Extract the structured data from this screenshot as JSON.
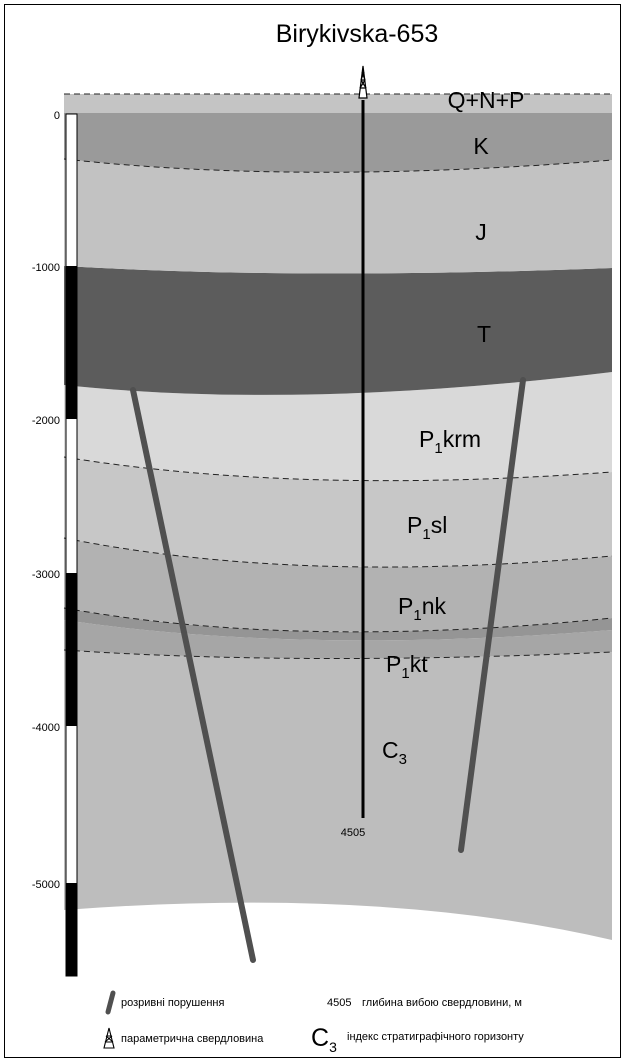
{
  "title": "Birykivska-653",
  "depth_axis": {
    "ticks": [
      "0",
      "-1000",
      "-2000",
      "-3000",
      "-4000",
      "-5000"
    ]
  },
  "layers": [
    {
      "id": "q",
      "name": "Q+N+P",
      "color": "#c4c4c4"
    },
    {
      "id": "k",
      "name": "K",
      "color": "#9a9a9a"
    },
    {
      "id": "j",
      "name": "J",
      "color": "#c2c2c2"
    },
    {
      "id": "t",
      "name": "T",
      "color": "#5c5c5c"
    },
    {
      "id": "krm",
      "name_main": "P",
      "name_sub": "1",
      "name_rest": "krm",
      "color": "#d9d9d9"
    },
    {
      "id": "sl",
      "name_main": "P",
      "name_sub": "1",
      "name_rest": "sl",
      "color": "#c7c7c7"
    },
    {
      "id": "nk",
      "name_main": "P",
      "name_sub": "1",
      "name_rest": "nk",
      "color": "#b2b2b2"
    },
    {
      "id": "nkdark",
      "color": "#959595"
    },
    {
      "id": "kt",
      "name_main": "P",
      "name_sub": "1",
      "name_rest": "kt",
      "color": "#a6a6a6"
    },
    {
      "id": "c3",
      "name_main": "C",
      "name_sub": "3",
      "name_rest": "",
      "color": "#bdbdbd"
    }
  ],
  "well": {
    "depth_label": "4505"
  },
  "legend": {
    "fault_label": "розривні порушення",
    "depth_value": "4505",
    "depth_label": "глибина вибою свердловини, м",
    "well_label": "параметрична свердловина",
    "index_main": "C",
    "index_sub": "3",
    "index_label": "індекс стратиграфічного горизонту"
  }
}
